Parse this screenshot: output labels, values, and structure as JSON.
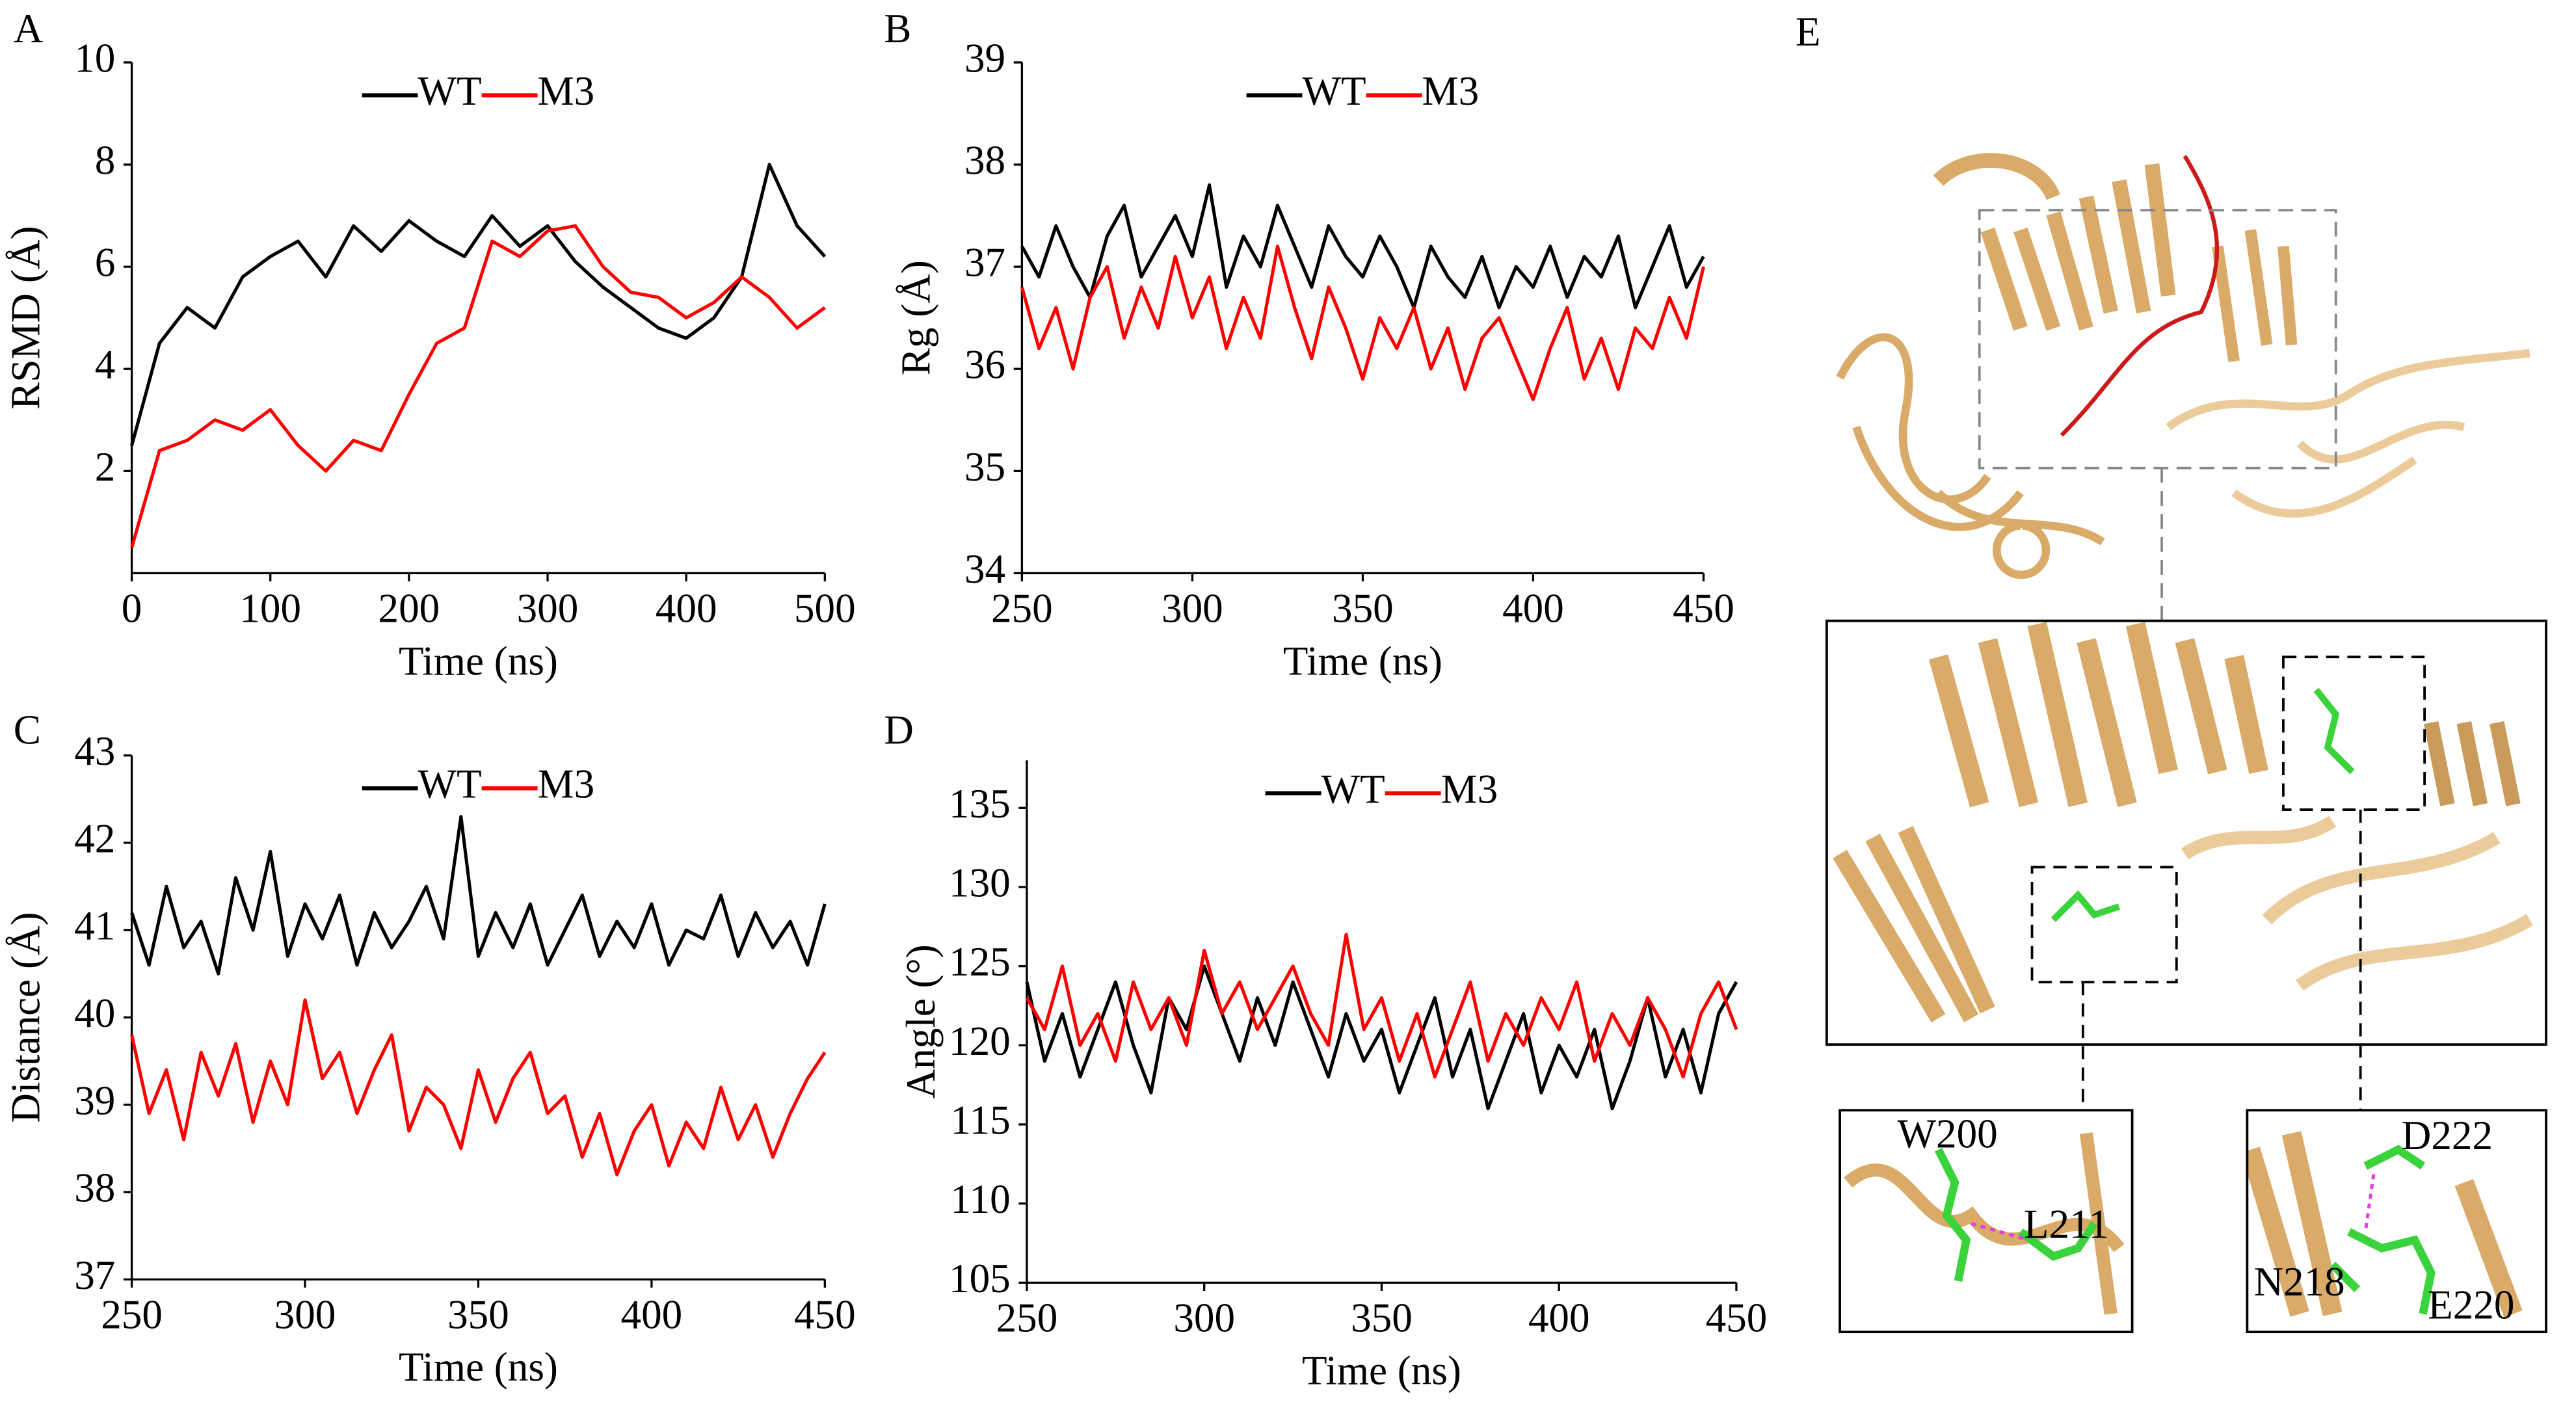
{
  "chart_data": [
    {
      "type": "line",
      "panel_label": "A",
      "xlabel": "Time (ns)",
      "ylabel": "RSMD (Å)",
      "legend": "upper center",
      "xlim": [
        0,
        500
      ],
      "ylim": [
        0,
        10
      ],
      "xticks": [
        0,
        100,
        200,
        300,
        400,
        500
      ],
      "yticks": [
        2,
        4,
        6,
        8,
        10
      ],
      "x": [
        0,
        20,
        40,
        60,
        80,
        100,
        120,
        140,
        160,
        180,
        200,
        220,
        240,
        260,
        280,
        300,
        320,
        340,
        360,
        380,
        400,
        420,
        440,
        460,
        480,
        500
      ],
      "series": [
        {
          "name": "WT",
          "color": "#000000",
          "values": [
            2.5,
            4.5,
            5.2,
            4.8,
            5.8,
            6.2,
            6.5,
            5.8,
            6.8,
            6.3,
            6.9,
            6.5,
            6.2,
            7.0,
            6.4,
            6.8,
            6.1,
            5.6,
            5.2,
            4.8,
            4.6,
            5.0,
            5.8,
            8.0,
            6.8,
            6.2
          ]
        },
        {
          "name": "M3",
          "color": "#ff0000",
          "values": [
            0.5,
            2.4,
            2.6,
            3.0,
            2.8,
            3.2,
            2.5,
            2.0,
            2.6,
            2.4,
            3.5,
            4.5,
            4.8,
            6.5,
            6.2,
            6.7,
            6.8,
            6.0,
            5.5,
            5.4,
            5.0,
            5.3,
            5.8,
            5.4,
            4.8,
            5.2
          ]
        }
      ]
    },
    {
      "type": "line",
      "panel_label": "B",
      "xlabel": "Time (ns)",
      "ylabel": "Rg (Å)",
      "legend": "upper center",
      "xlim": [
        250,
        450
      ],
      "ylim": [
        34,
        39
      ],
      "xticks": [
        250,
        300,
        350,
        400,
        450
      ],
      "yticks": [
        34,
        35,
        36,
        37,
        38,
        39
      ],
      "x": [
        250,
        255,
        260,
        265,
        270,
        275,
        280,
        285,
        290,
        295,
        300,
        305,
        310,
        315,
        320,
        325,
        330,
        335,
        340,
        345,
        350,
        355,
        360,
        365,
        370,
        375,
        380,
        385,
        390,
        395,
        400,
        405,
        410,
        415,
        420,
        425,
        430,
        435,
        440,
        445,
        450
      ],
      "series": [
        {
          "name": "WT",
          "color": "#000000",
          "values": [
            37.2,
            36.9,
            37.4,
            37.0,
            36.7,
            37.3,
            37.6,
            36.9,
            37.2,
            37.5,
            37.1,
            37.8,
            36.8,
            37.3,
            37.0,
            37.6,
            37.2,
            36.8,
            37.4,
            37.1,
            36.9,
            37.3,
            37.0,
            36.6,
            37.2,
            36.9,
            36.7,
            37.1,
            36.6,
            37.0,
            36.8,
            37.2,
            36.7,
            37.1,
            36.9,
            37.3,
            36.6,
            37.0,
            37.4,
            36.8,
            37.1
          ]
        },
        {
          "name": "M3",
          "color": "#ff0000",
          "values": [
            36.8,
            36.2,
            36.6,
            36.0,
            36.7,
            37.0,
            36.3,
            36.8,
            36.4,
            37.1,
            36.5,
            36.9,
            36.2,
            36.7,
            36.3,
            37.2,
            36.6,
            36.1,
            36.8,
            36.4,
            35.9,
            36.5,
            36.2,
            36.6,
            36.0,
            36.4,
            35.8,
            36.3,
            36.5,
            36.1,
            35.7,
            36.2,
            36.6,
            35.9,
            36.3,
            35.8,
            36.4,
            36.2,
            36.7,
            36.3,
            37.0
          ]
        }
      ]
    },
    {
      "type": "line",
      "panel_label": "C",
      "xlabel": "Time (ns)",
      "ylabel": "Distance (Å)",
      "legend": "upper center",
      "xlim": [
        250,
        450
      ],
      "ylim": [
        37,
        43
      ],
      "xticks": [
        250,
        300,
        350,
        400,
        450
      ],
      "yticks": [
        37,
        38,
        39,
        40,
        41,
        42,
        43
      ],
      "x": [
        250,
        255,
        260,
        265,
        270,
        275,
        280,
        285,
        290,
        295,
        300,
        305,
        310,
        315,
        320,
        325,
        330,
        335,
        340,
        345,
        350,
        355,
        360,
        365,
        370,
        375,
        380,
        385,
        390,
        395,
        400,
        405,
        410,
        415,
        420,
        425,
        430,
        435,
        440,
        445,
        450
      ],
      "series": [
        {
          "name": "WT",
          "color": "#000000",
          "values": [
            41.2,
            40.6,
            41.5,
            40.8,
            41.1,
            40.5,
            41.6,
            41.0,
            41.9,
            40.7,
            41.3,
            40.9,
            41.4,
            40.6,
            41.2,
            40.8,
            41.1,
            41.5,
            40.9,
            42.3,
            40.7,
            41.2,
            40.8,
            41.3,
            40.6,
            41.0,
            41.4,
            40.7,
            41.1,
            40.8,
            41.3,
            40.6,
            41.0,
            40.9,
            41.4,
            40.7,
            41.2,
            40.8,
            41.1,
            40.6,
            41.3
          ]
        },
        {
          "name": "M3",
          "color": "#ff0000",
          "values": [
            39.8,
            38.9,
            39.4,
            38.6,
            39.6,
            39.1,
            39.7,
            38.8,
            39.5,
            39.0,
            40.2,
            39.3,
            39.6,
            38.9,
            39.4,
            39.8,
            38.7,
            39.2,
            39.0,
            38.5,
            39.4,
            38.8,
            39.3,
            39.6,
            38.9,
            39.1,
            38.4,
            38.9,
            38.2,
            38.7,
            39.0,
            38.3,
            38.8,
            38.5,
            39.2,
            38.6,
            39.0,
            38.4,
            38.9,
            39.3,
            39.6
          ]
        }
      ]
    },
    {
      "type": "line",
      "panel_label": "D",
      "xlabel": "Time (ns)",
      "ylabel": "Angle (°)",
      "legend": "upper center",
      "xlim": [
        250,
        450
      ],
      "ylim": [
        105,
        138
      ],
      "xticks": [
        250,
        300,
        350,
        400,
        450
      ],
      "yticks": [
        105,
        110,
        115,
        120,
        125,
        130,
        135
      ],
      "x": [
        250,
        255,
        260,
        265,
        270,
        275,
        280,
        285,
        290,
        295,
        300,
        305,
        310,
        315,
        320,
        325,
        330,
        335,
        340,
        345,
        350,
        355,
        360,
        365,
        370,
        375,
        380,
        385,
        390,
        395,
        400,
        405,
        410,
        415,
        420,
        425,
        430,
        435,
        440,
        445,
        450
      ],
      "series": [
        {
          "name": "WT",
          "color": "#000000",
          "values": [
            124,
            119,
            122,
            118,
            121,
            124,
            120,
            117,
            123,
            121,
            125,
            122,
            119,
            123,
            120,
            124,
            121,
            118,
            122,
            119,
            121,
            117,
            120,
            123,
            118,
            121,
            116,
            119,
            122,
            117,
            120,
            118,
            121,
            116,
            119,
            123,
            118,
            121,
            117,
            122,
            124
          ]
        },
        {
          "name": "M3",
          "color": "#ff0000",
          "values": [
            123,
            121,
            125,
            120,
            122,
            119,
            124,
            121,
            123,
            120,
            126,
            122,
            124,
            121,
            123,
            125,
            122,
            120,
            127,
            121,
            123,
            119,
            122,
            118,
            121,
            124,
            119,
            122,
            120,
            123,
            121,
            124,
            119,
            122,
            120,
            123,
            121,
            118,
            122,
            124,
            121
          ]
        }
      ]
    }
  ],
  "panel_e": {
    "label": "E",
    "residues": [
      "W200",
      "L211",
      "D222",
      "N218",
      "E220"
    ]
  }
}
